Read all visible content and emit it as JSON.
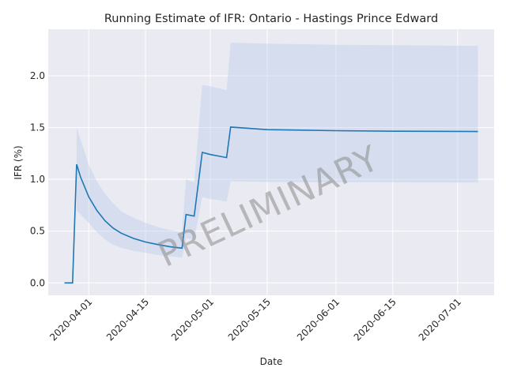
{
  "chart_data": {
    "type": "line",
    "title": "Running Estimate of IFR: Ontario - Hastings Prince Edward",
    "xlabel": "Date",
    "ylabel": "IFR (%)",
    "watermark": "PRELIMINARY",
    "xlim": [
      "2020-03-22",
      "2020-07-10"
    ],
    "ylim": [
      -0.12,
      2.45
    ],
    "grid": true,
    "x_ticks": [
      "2020-04-01",
      "2020-04-15",
      "2020-05-01",
      "2020-05-15",
      "2020-06-01",
      "2020-06-15",
      "2020-07-01"
    ],
    "y_ticks": [
      0.0,
      0.5,
      1.0,
      1.5,
      2.0
    ],
    "y_tick_labels": [
      "0.0",
      "0.5",
      "1.0",
      "1.5",
      "2.0"
    ],
    "colors": {
      "line": "#1f77b4",
      "band": "#aec7e8",
      "plot_bg": "#eaeaf2",
      "grid": "#ffffff"
    },
    "series": [
      {
        "x": [
          "2020-03-26",
          "2020-03-28",
          "2020-03-29",
          "2020-03-30",
          "2020-04-01",
          "2020-04-03",
          "2020-04-05",
          "2020-04-07",
          "2020-04-09",
          "2020-04-12",
          "2020-04-15",
          "2020-04-18",
          "2020-04-21",
          "2020-04-24",
          "2020-04-25",
          "2020-04-27",
          "2020-04-29",
          "2020-05-01",
          "2020-05-03",
          "2020-05-05",
          "2020-05-06",
          "2020-05-15",
          "2020-06-01",
          "2020-06-15",
          "2020-07-01",
          "2020-07-06"
        ],
        "y": [
          0.0,
          0.0,
          1.145,
          1.02,
          0.83,
          0.7,
          0.6,
          0.53,
          0.48,
          0.43,
          0.395,
          0.37,
          0.35,
          0.335,
          0.66,
          0.645,
          1.26,
          1.24,
          1.225,
          1.21,
          1.505,
          1.48,
          1.47,
          1.465,
          1.463,
          1.462
        ],
        "lower": [
          null,
          null,
          0.7,
          0.66,
          0.58,
          0.49,
          0.42,
          0.37,
          0.34,
          0.31,
          0.29,
          0.27,
          0.255,
          0.245,
          0.43,
          0.42,
          0.83,
          0.81,
          0.8,
          0.785,
          0.98,
          0.975,
          0.972,
          0.971,
          0.97,
          0.97
        ],
        "upper": [
          null,
          null,
          1.5,
          1.38,
          1.14,
          0.98,
          0.86,
          0.77,
          0.69,
          0.63,
          0.58,
          0.54,
          0.51,
          0.49,
          1.0,
          0.97,
          1.91,
          1.9,
          1.88,
          1.86,
          2.32,
          2.31,
          2.3,
          2.295,
          2.29,
          2.29
        ]
      }
    ]
  }
}
